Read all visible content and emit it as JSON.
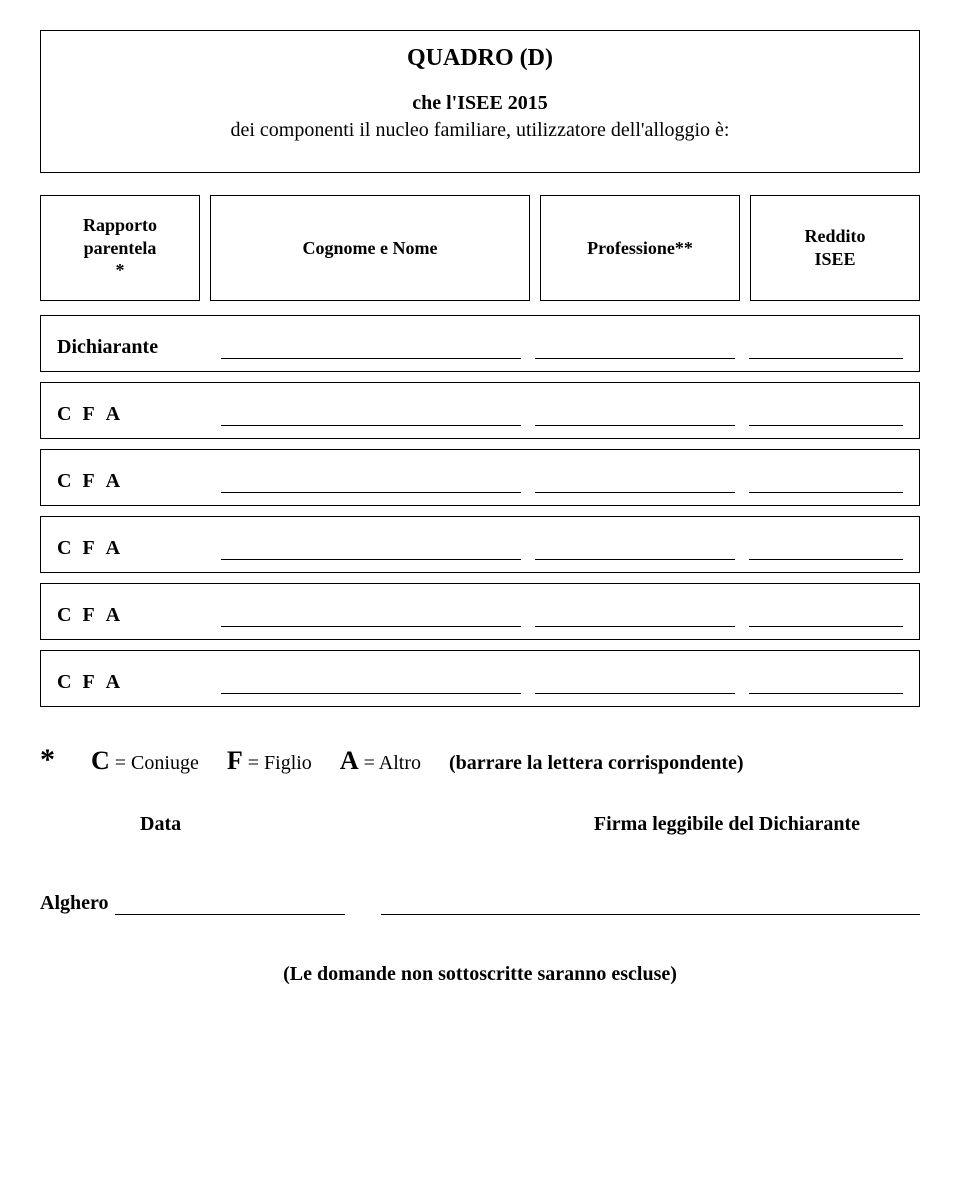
{
  "quadro": {
    "title": "QUADRO (D)",
    "subtitle": "che l'ISEE 2015",
    "description": "dei componenti il nucleo familiare, utilizzatore dell'alloggio è:"
  },
  "headers": {
    "col1_line1": "Rapporto",
    "col1_line2": "parentela",
    "col1_line3": "*",
    "col2": "Cognome e Nome",
    "col3": "Professione**",
    "col4_line1": "Reddito",
    "col4_line2": "ISEE"
  },
  "rows": {
    "r0": "Dichiarante",
    "cfa_c": "C",
    "cfa_f": "F",
    "cfa_a": "A"
  },
  "legend": {
    "star": "*",
    "c_key": "C",
    "c_val": "= Coniuge",
    "f_key": "F",
    "f_val": "= Figlio",
    "a_key": "A",
    "a_val": "= Altro",
    "paren": "(barrare la lettera corrispondente)"
  },
  "df": {
    "data_label": "Data",
    "firma_label": "Firma leggibile del Dichiarante"
  },
  "city": "Alghero",
  "note": "(Le domande non sottoscritte saranno escluse)"
}
